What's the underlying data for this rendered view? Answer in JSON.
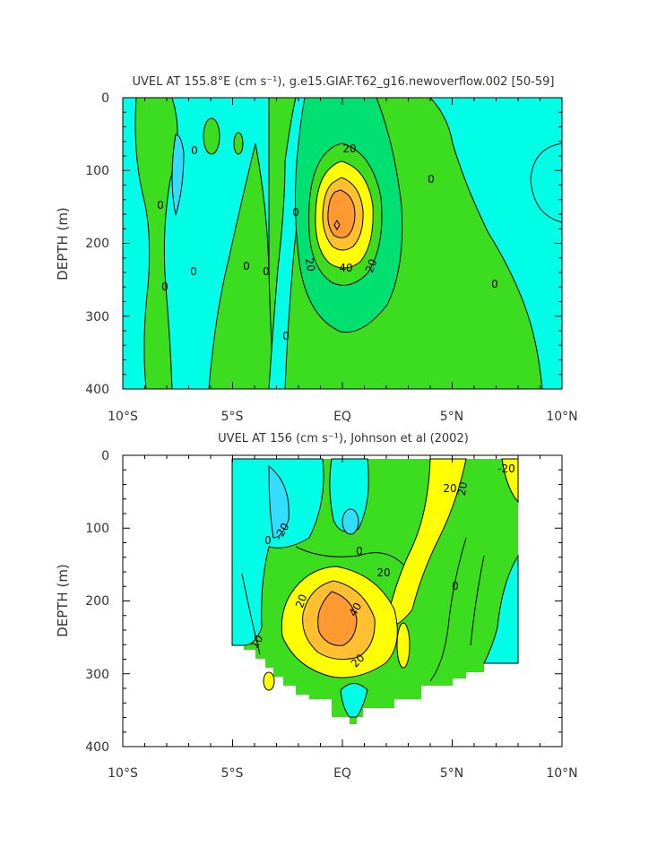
{
  "colors": {
    "cyan": "#00ffe6",
    "cyan_light": "#33ddff",
    "green_mid": "#00e070",
    "green": "#3cdc1e",
    "yellow": "#ffff00",
    "orange_light": "#ffc030",
    "orange": "#ff9a33",
    "axis": "#000000",
    "text": "#333333"
  },
  "chart_data": [
    {
      "type": "heatmap",
      "title": "UVEL AT 155.8°E (cm s⁻¹), g.e15.GIAF.T62_g16.newoverflow.002 [50-59]",
      "xlabel": "",
      "ylabel": "DEPTH (m)",
      "x_ticks": [
        "10°S",
        "5°S",
        "EQ",
        "5°N",
        "10°N"
      ],
      "y_ticks": [
        "0",
        "100",
        "200",
        "300",
        "400"
      ],
      "xlim": [
        -10,
        10
      ],
      "ylim": [
        400,
        0
      ],
      "contour_interval": 10,
      "contour_labels": [
        "0",
        "0",
        "0",
        "0",
        "0",
        "0",
        "0",
        "0",
        "0",
        "0",
        "0",
        "20",
        "20",
        "20",
        "40",
        "0",
        "0"
      ],
      "features": [
        {
          "name": "EUC core",
          "x": 0,
          "depth": 175,
          "max": 60
        }
      ]
    },
    {
      "type": "heatmap",
      "title": "UVEL AT 156 (cm s⁻¹), Johnson et al (2002)",
      "xlabel": "",
      "ylabel": "DEPTH (m)",
      "x_ticks": [
        "10°S",
        "5°S",
        "EQ",
        "5°N",
        "10°N"
      ],
      "y_ticks": [
        "0",
        "100",
        "200",
        "300",
        "400"
      ],
      "xlim": [
        -10,
        10
      ],
      "ylim": [
        400,
        0
      ],
      "contour_interval": 10,
      "contour_labels": [
        "-20",
        "0",
        "0",
        "20",
        "20",
        "20",
        "20",
        "40",
        "20",
        "10",
        "0",
        "-20"
      ],
      "features": [
        {
          "name": "EUC core",
          "x": -0.2,
          "depth": 200,
          "max": 50
        }
      ]
    }
  ]
}
